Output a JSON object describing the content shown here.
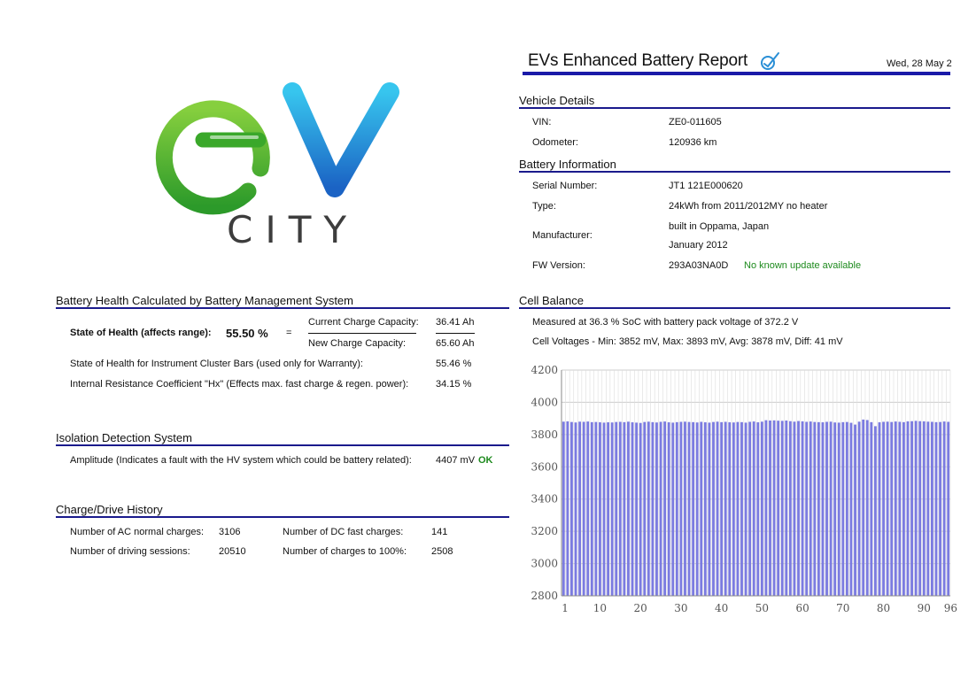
{
  "logo": {
    "text_ev": "eV",
    "text_city": "CITY"
  },
  "header": {
    "title": "EVs Enhanced Battery Report",
    "date": "Wed, 28 May 2"
  },
  "vehicle": {
    "title": "Vehicle Details",
    "vin_label": "VIN:",
    "vin": "ZE0-011605",
    "odometer_label": "Odometer:",
    "odometer": "120936 km"
  },
  "battery": {
    "title": "Battery Information",
    "serial_label": "Serial Number:",
    "serial": "JT1 121E000620",
    "type_label": "Type:",
    "type": "24kWh from 2011/2012MY no heater",
    "manufacturer_label": "Manufacturer:",
    "manufacturer_line1": "built in Oppama, Japan",
    "manufacturer_line2": "January 2012",
    "fw_label": "FW Version:",
    "fw": "293A03NA0D",
    "fw_status": "No known update available"
  },
  "health": {
    "title": "Battery Health Calculated by Battery Management System",
    "soh_label": "State of Health (affects range):",
    "soh_value": "55.50 %",
    "equals": "=",
    "current_label": "Current Charge Capacity:",
    "current_value": "36.41 Ah",
    "new_label": "New Charge Capacity:",
    "new_value": "65.60 Ah",
    "bars_label": "State of Health for Instrument Cluster Bars (used only for Warranty):",
    "bars_value": "55.46 %",
    "hx_label": "Internal Resistance Coefficient \"Hx\" (Effects max. fast charge & regen. power):",
    "hx_value": "34.15 %"
  },
  "isolation": {
    "title": "Isolation Detection System",
    "amp_label": "Amplitude (Indicates a fault with the HV system which could be battery related):",
    "amp_value": "4407 mV",
    "amp_status": "OK"
  },
  "history": {
    "title": "Charge/Drive History",
    "ac_label": "Number of AC normal charges:",
    "ac_value": "3106",
    "dc_label": "Number of DC fast charges:",
    "dc_value": "141",
    "drive_label": "Number of driving sessions:",
    "drive_value": "20510",
    "full_label": "Number of charges to 100%:",
    "full_value": "2508"
  },
  "cell": {
    "title": "Cell Balance",
    "measured": "Measured at 36.3 % SoC with battery pack voltage of 372.2 V",
    "voltages": "Cell Voltages - Min: 3852 mV, Max: 3893 mV, Avg: 3878 mV, Diff: 41 mV"
  },
  "colors": {
    "accent": "#1a1a8c",
    "bar": "#7b7be0",
    "ok": "#1d8a1d",
    "logo_green": "#4caf2a",
    "logo_blue": "#2a8fd6"
  },
  "chart_data": {
    "type": "bar",
    "title": "",
    "xlabel": "",
    "ylabel": "",
    "ylim": [
      2800,
      4200
    ],
    "yticks": [
      2800,
      3000,
      3200,
      3400,
      3600,
      3800,
      4000,
      4200
    ],
    "xticks": [
      1,
      10,
      20,
      30,
      40,
      50,
      60,
      70,
      80,
      90,
      96
    ],
    "xtick_labels": [
      "1",
      "10",
      "20",
      "30",
      "40",
      "50",
      "60",
      "70",
      "80",
      "90",
      "96"
    ],
    "grid": true,
    "series": [
      {
        "values": [
          3880,
          3882,
          3878,
          3875,
          3880,
          3879,
          3881,
          3877,
          3878,
          3876,
          3874,
          3876,
          3875,
          3878,
          3879,
          3877,
          3880,
          3876,
          3874,
          3872,
          3878,
          3880,
          3877,
          3875,
          3879,
          3881,
          3876,
          3874,
          3877,
          3879,
          3880,
          3878,
          3877,
          3875,
          3879,
          3876,
          3874,
          3878,
          3880,
          3877,
          3879,
          3876,
          3875,
          3878,
          3877,
          3874,
          3879,
          3881,
          3876,
          3880,
          3889,
          3887,
          3888,
          3886,
          3885,
          3887,
          3883,
          3880,
          3884,
          3882,
          3879,
          3881,
          3878,
          3877,
          3876,
          3879,
          3880,
          3875,
          3874,
          3877,
          3878,
          3873,
          3862,
          3880,
          3893,
          3890,
          3877,
          3852,
          3876,
          3879,
          3880,
          3878,
          3881,
          3879,
          3877,
          3882,
          3883,
          3885,
          3883,
          3882,
          3880,
          3879,
          3877,
          3878,
          3881,
          3879
        ]
      }
    ]
  }
}
